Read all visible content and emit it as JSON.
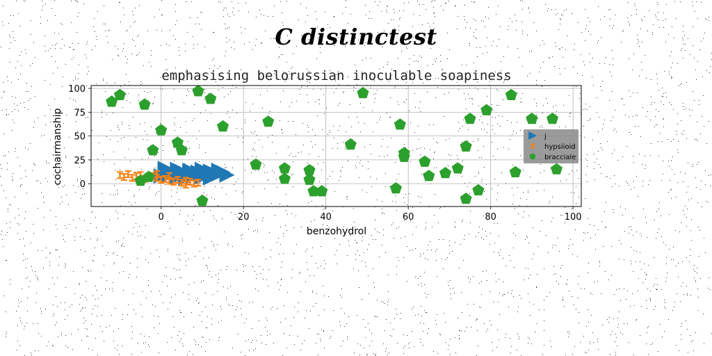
{
  "figure": {
    "suptitle": "C distinctest"
  },
  "chart_data": {
    "type": "scatter",
    "title": "emphasising belorussian inoculable soapiness",
    "xlabel": "benzohydrol",
    "ylabel": "cochairmanship",
    "xlim": [
      -17,
      102
    ],
    "ylim": [
      -24,
      103
    ],
    "xticks": [
      0,
      20,
      40,
      60,
      80,
      100
    ],
    "yticks": [
      0,
      25,
      50,
      75,
      100
    ],
    "grid": true,
    "legend_position": "center-right",
    "series": [
      {
        "name": "j",
        "marker": "triangle-right",
        "color": "#1f77b4",
        "points": [
          [
            0,
            8
          ],
          [
            1,
            12
          ],
          [
            2,
            9
          ],
          [
            3,
            11
          ],
          [
            4,
            7
          ],
          [
            5,
            13
          ],
          [
            6,
            10
          ],
          [
            7,
            14
          ],
          [
            8,
            8
          ],
          [
            9,
            12
          ],
          [
            10,
            15
          ],
          [
            11,
            9
          ],
          [
            12,
            13
          ],
          [
            13,
            11
          ],
          [
            14,
            10
          ],
          [
            15,
            12
          ],
          [
            16,
            9
          ],
          [
            1,
            16
          ],
          [
            4,
            15
          ],
          [
            6,
            6
          ],
          [
            10,
            7
          ],
          [
            12,
            6
          ],
          [
            14,
            14
          ]
        ]
      },
      {
        "name": "hypsiioid",
        "marker": "x",
        "color": "#ff7f0e",
        "points": [
          [
            -10,
            9
          ],
          [
            -9,
            7
          ],
          [
            -8,
            10
          ],
          [
            -7,
            6
          ],
          [
            -6,
            8
          ],
          [
            -5,
            9
          ],
          [
            -4,
            5
          ],
          [
            -3,
            7
          ],
          [
            -2,
            8
          ],
          [
            -1,
            6
          ],
          [
            0,
            4
          ],
          [
            1,
            5
          ],
          [
            2,
            3
          ],
          [
            3,
            2
          ],
          [
            4,
            4
          ],
          [
            5,
            1
          ],
          [
            6,
            3
          ],
          [
            7,
            2
          ],
          [
            8,
            0
          ],
          [
            9,
            1
          ],
          [
            -5,
            4
          ],
          [
            -1,
            10
          ],
          [
            2,
            8
          ],
          [
            6,
            -1
          ]
        ]
      },
      {
        "name": "bracciale",
        "marker": "pentagon",
        "color": "#2ca02c",
        "points": [
          [
            -12,
            86
          ],
          [
            -10,
            93
          ],
          [
            -4,
            83
          ],
          [
            -2,
            35
          ],
          [
            0,
            56
          ],
          [
            4,
            43
          ],
          [
            5,
            35
          ],
          [
            -5,
            3
          ],
          [
            -3,
            7
          ],
          [
            9,
            97
          ],
          [
            12,
            89
          ],
          [
            15,
            60
          ],
          [
            10,
            -18
          ],
          [
            23,
            20
          ],
          [
            26,
            65
          ],
          [
            30,
            16
          ],
          [
            30,
            5
          ],
          [
            36,
            14
          ],
          [
            36,
            4
          ],
          [
            37,
            -8
          ],
          [
            39,
            -8
          ],
          [
            46,
            41
          ],
          [
            49,
            95
          ],
          [
            57,
            -5
          ],
          [
            58,
            62
          ],
          [
            59,
            32
          ],
          [
            59,
            28
          ],
          [
            64,
            23
          ],
          [
            65,
            8
          ],
          [
            69,
            11
          ],
          [
            72,
            16
          ],
          [
            74,
            39
          ],
          [
            75,
            68
          ],
          [
            74,
            -16
          ],
          [
            77,
            -7
          ],
          [
            79,
            77
          ],
          [
            85,
            93
          ],
          [
            86,
            12
          ],
          [
            90,
            68
          ],
          [
            95,
            68
          ],
          [
            96,
            15
          ]
        ]
      }
    ]
  }
}
